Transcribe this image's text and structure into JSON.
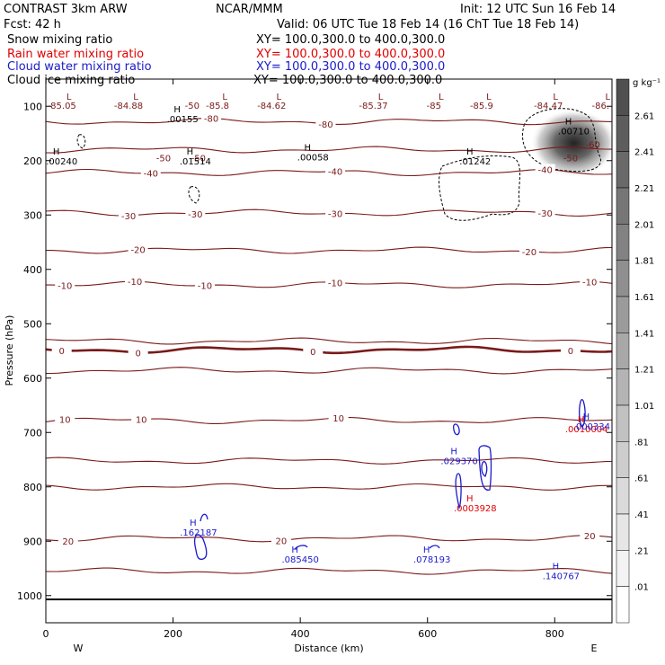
{
  "header": {
    "product": "CONTRAST  3km ARW",
    "center": "NCAR/MMM",
    "init": "Init: 12 UTC Sun 16 Feb 14",
    "fcst": "Fcst:   42 h",
    "valid": "Valid: 06 UTC Tue 18 Feb 14 (16 ChT Tue 18 Feb 14)"
  },
  "fields": [
    {
      "name": "Snow mixing ratio",
      "xy": "XY=  100.0,300.0 to 400.0,300.0",
      "color": "#000000"
    },
    {
      "name": "Rain water mixing ratio",
      "xy": "XY=  100.0,300.0 to 400.0,300.0",
      "color": "#e00000"
    },
    {
      "name": "Cloud water mixing ratio",
      "xy": "XY=  100.0,300.0 to 400.0,300.0",
      "color": "#1a1acc"
    },
    {
      "name": "Cloud ice mixing ratio",
      "xy": "XY=  100.0,300.0 to 400.0,300.0",
      "color": "#000000"
    }
  ],
  "colors": {
    "temp": "#7a1a1a",
    "rain": "#e00000",
    "cloud": "#1a1acc",
    "ice": "#000000"
  },
  "chart_data": {
    "type": "contour",
    "xlabel": "Distance (km)",
    "ylabel": "Pressure (hPa)",
    "xlim": [
      0,
      890
    ],
    "ylim": [
      1050,
      50
    ],
    "xticks": [
      "0",
      "200",
      "400",
      "600",
      "800"
    ],
    "yticks": [
      "100",
      "200",
      "300",
      "400",
      "500",
      "600",
      "700",
      "800",
      "900",
      "1000"
    ],
    "west": "W",
    "east": "E",
    "colorbar": {
      "unit": "g kg⁻¹",
      "labels": [
        "2.61",
        "2.41",
        "2.21",
        "2.01",
        "1.81",
        "1.61",
        "1.41",
        "1.21",
        "1.01",
        ".81",
        ".61",
        ".41",
        ".21",
        ".01"
      ]
    },
    "isotherms": [
      {
        "p": 128,
        "label": "-80",
        "labels_at": [
          260,
          440
        ]
      },
      {
        "p": 180,
        "label": "",
        "labels_at": []
      },
      {
        "p": 222,
        "label": "-40",
        "labels_at": [
          165,
          455,
          785
        ]
      },
      {
        "p": 296,
        "label": "-30",
        "labels_at": [
          130,
          235,
          455,
          785
        ]
      },
      {
        "p": 365,
        "label": "-20",
        "labels_at": [
          145,
          760
        ]
      },
      {
        "p": 428,
        "label": "-10",
        "labels_at": [
          30,
          140,
          250,
          455,
          855
        ]
      },
      {
        "p": 532,
        "label": "",
        "labels_at": []
      },
      {
        "p": 548,
        "label": "0",
        "labels_at": [
          25,
          145,
          420,
          825
        ],
        "bold": true
      },
      {
        "p": 586,
        "label": "",
        "labels_at": []
      },
      {
        "p": 678,
        "label": "10",
        "labels_at": [
          30,
          150,
          460
        ]
      },
      {
        "p": 752,
        "label": "",
        "labels_at": []
      },
      {
        "p": 800,
        "label": "",
        "labels_at": []
      },
      {
        "p": 895,
        "label": "20",
        "labels_at": [
          35,
          370,
          855
        ]
      },
      {
        "p": 955,
        "label": "",
        "labels_at": []
      }
    ],
    "temp_minima": [
      {
        "x": 25,
        "label": "-85.05"
      },
      {
        "x": 130,
        "label": "-84.88"
      },
      {
        "x": 270,
        "label": "-85.8"
      },
      {
        "x": 355,
        "label": "-84.62"
      },
      {
        "x": 515,
        "label": "-85.37"
      },
      {
        "x": 610,
        "label": "-85"
      },
      {
        "x": 685,
        "label": "-85.9"
      },
      {
        "x": 790,
        "label": "-84.47"
      },
      {
        "x": 872,
        "label": "-86."
      }
    ],
    "extra_temp_labels": [
      {
        "x": 230,
        "p": 98,
        "text": "-50"
      },
      {
        "x": 185,
        "p": 195,
        "text": "-50"
      },
      {
        "x": 240,
        "p": 195,
        "text": "-50"
      },
      {
        "x": 860,
        "p": 170,
        "text": "-60"
      },
      {
        "x": 825,
        "p": 195,
        "text": "-50"
      }
    ],
    "snow_maxima": [
      {
        "x": 25,
        "p": 205,
        "value": ".00240"
      },
      {
        "x": 215,
        "p": 128,
        "value": ".00155"
      },
      {
        "x": 235,
        "p": 205,
        "value": ".01514"
      },
      {
        "x": 420,
        "p": 198,
        "value": ".00058"
      },
      {
        "x": 675,
        "p": 205,
        "value": ".01242"
      },
      {
        "x": 830,
        "p": 150,
        "value": ".00710"
      }
    ],
    "rain_maxima": [
      {
        "x": 675,
        "p": 843,
        "value": ".0003928"
      },
      {
        "x": 850,
        "p": 698,
        "value": ".0010004"
      }
    ],
    "cloud_maxima": [
      {
        "x": 240,
        "p": 888,
        "value": ".162187"
      },
      {
        "x": 400,
        "p": 938,
        "value": ".085450"
      },
      {
        "x": 607,
        "p": 938,
        "value": ".078193"
      },
      {
        "x": 650,
        "p": 757,
        "value": ".029370"
      },
      {
        "x": 810,
        "p": 968,
        "value": ".140767"
      },
      {
        "x": 858,
        "p": 693,
        "value": ".000334"
      }
    ],
    "ice_max": {
      "x": 830,
      "p": 168,
      "value_gkg": 2.61
    }
  }
}
